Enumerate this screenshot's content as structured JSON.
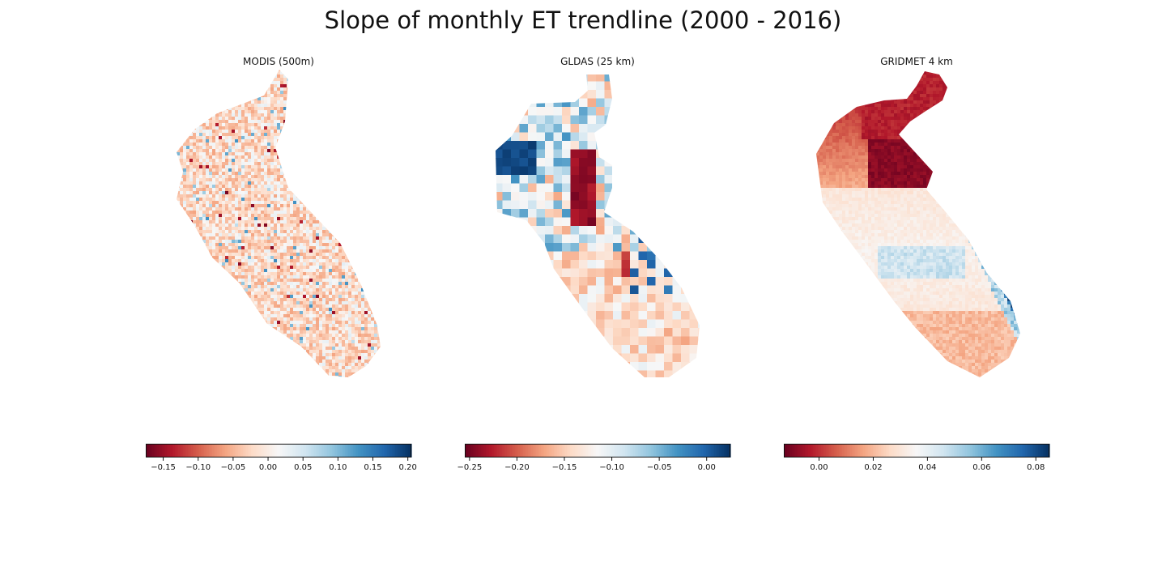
{
  "title": "Slope of monthly ET trendline (2000 - 2016)",
  "colormap": {
    "name": "RdBu",
    "stops": [
      "#67001f",
      "#b2182b",
      "#d6604d",
      "#f4a582",
      "#fddbc7",
      "#f7f7f7",
      "#d1e5f0",
      "#92c5de",
      "#4393c3",
      "#2166ac",
      "#053061"
    ]
  },
  "panels": [
    {
      "id": "modis",
      "title": "MODIS (500m)",
      "vmin": -0.175,
      "vmax": 0.205,
      "ticks": [
        -0.15,
        -0.1,
        -0.05,
        0.0,
        0.05,
        0.1,
        0.15,
        0.2
      ],
      "tick_labels": [
        "−0.15",
        "−0.10",
        "−0.05",
        "0.00",
        "0.05",
        "0.10",
        "0.15",
        "0.20"
      ]
    },
    {
      "id": "gldas",
      "title": "GLDAS (25 km)",
      "vmin": -0.255,
      "vmax": 0.025,
      "ticks": [
        -0.25,
        -0.2,
        -0.15,
        -0.1,
        -0.05,
        0.0
      ],
      "tick_labels": [
        "−0.25",
        "−0.20",
        "−0.15",
        "−0.10",
        "−0.05",
        "0.00"
      ]
    },
    {
      "id": "gridmet",
      "title": "GRIDMET 4 km",
      "vmin": -0.013,
      "vmax": 0.085,
      "ticks": [
        0.0,
        0.02,
        0.04,
        0.06,
        0.08
      ],
      "tick_labels": [
        "0.00",
        "0.02",
        "0.04",
        "0.06",
        "0.08"
      ]
    }
  ]
}
